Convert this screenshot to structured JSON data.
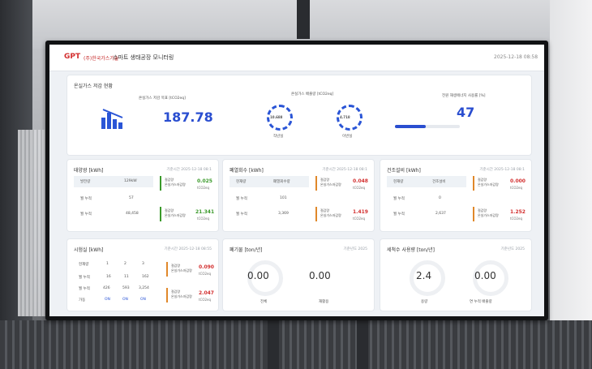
{
  "header": {
    "logo": "GPT",
    "company": "(주)한국가스기술",
    "title": "스마트 생태공장 모니터링",
    "datetime": "2025-12-18 08:58"
  },
  "ghg": {
    "title": "온실가스 저감 현황",
    "target_label": "온실가스 저감 목표 [tCO2eq]",
    "target_value": "187.78",
    "emission_label": "온실가스 배출량 [tCO2eq]",
    "last_year_value": "10.688",
    "last_year_label": "작년실",
    "this_year_value": "4.718",
    "this_year_label": "이번실",
    "renew_label": "전원 재생에너지 사용률 [%]",
    "renew_value": "47",
    "renew_fraction": 0.47
  },
  "solar": {
    "title": "태양광 [kWh]",
    "time": "기준시간 2025-12-18 08:1",
    "head_label": "발전량",
    "head_value": "129kW",
    "row1_label": "월 누적",
    "row1_value": "57",
    "row2_label": "월 누적",
    "row2_value": "48,458",
    "side1_label": "절감량",
    "side1_sub": "온실가스저감량",
    "side1_value": "0.025",
    "side1_unit": "tCO2eq",
    "side2_label": "절감량",
    "side2_sub": "온실가스저감량",
    "side2_value": "21.341",
    "side2_unit": "tCO2eq"
  },
  "heat": {
    "title": "폐열회수 [kWh]",
    "time": "기준시간 2025-12-18 08:1",
    "head_label": "현재량",
    "head_value": "폐열회수량",
    "row1_label": "월 누적",
    "row1_value": "101",
    "row2_label": "월 누적",
    "row2_value": "3,369",
    "side1_label": "절감량",
    "side1_sub": "온실가스저감량",
    "side1_value": "0.048",
    "side1_unit": "tCO2eq",
    "side2_label": "절감량",
    "side2_sub": "온실가스저감량",
    "side2_value": "1.419",
    "side2_unit": "tCO2eq"
  },
  "facility": {
    "title": "건조설비 [kWh]",
    "time": "기준시간 2025-12-18 08:1",
    "head_label": "현재량",
    "head_value": "건조설비",
    "row1_label": "월 누적",
    "row1_value": "0",
    "row2_label": "월 누적",
    "row2_value": "2,637",
    "side1_label": "절감량",
    "side1_sub": "온실가스저감량",
    "side1_value": "0.000",
    "side1_unit": "tCO2eq",
    "side2_label": "절감량",
    "side2_sub": "온실가스저감량",
    "side2_value": "1.252",
    "side2_unit": "tCO2eq"
  },
  "experiment": {
    "title": "시험실 [kWh]",
    "time": "기준시간 2025-12-18 08:55",
    "cols": [
      "현재량",
      "1",
      "2",
      "3"
    ],
    "r1": [
      "월 누적",
      "16",
      "11",
      "162"
    ],
    "r2": [
      "월 누적",
      "426",
      "593",
      "3,254"
    ],
    "r3": [
      "가동",
      "ON",
      "ON",
      "ON"
    ],
    "side1_label": "절감량",
    "side1_sub": "온실가스저감량",
    "side1_value": "0.090",
    "side1_unit": "tCO2eq",
    "side2_label": "절감량",
    "side2_sub": "온실가스저감량",
    "side2_value": "2.047",
    "side2_unit": "tCO2eq"
  },
  "waste": {
    "title": "폐기물 [ton/년]",
    "time": "기준년도 2025",
    "v1": "0.00",
    "l1": "전체",
    "v2": "0.00",
    "l2": "재활용"
  },
  "water": {
    "title": "세척수 사용량 [ton/년]",
    "time": "기준년도 2025",
    "v1": "2.4",
    "l1": "용량",
    "v2": "0.00",
    "l2": "연 누적 배출량"
  }
}
